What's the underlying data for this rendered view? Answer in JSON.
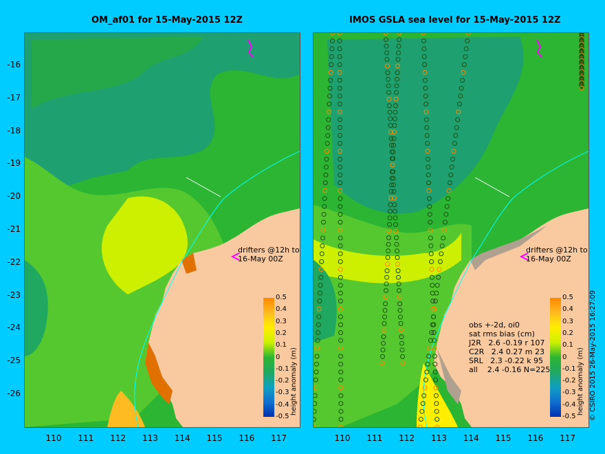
{
  "left_panel": {
    "title": "OM_af01 for 15-May-2015 12Z"
  },
  "right_panel": {
    "title": "IMOS GSLA sea level  for 15-May-2015 12Z"
  },
  "map_axes": {
    "lat_ticks": [
      "-16",
      "-17",
      "-18",
      "-19",
      "-20",
      "-21",
      "-22",
      "-23",
      "-24",
      "-25",
      "-26"
    ],
    "lon_ticks": [
      "110",
      "111",
      "112",
      "113",
      "114",
      "115",
      "116",
      "117"
    ],
    "lon_range": [
      109.1,
      118
    ],
    "lat_range": [
      -27,
      -15
    ]
  },
  "colorbar": {
    "ticks": [
      "0.5",
      "0.4",
      "0.3",
      "0.2",
      "0.1",
      "0",
      "-0.1",
      "-0.2",
      "-0.3",
      "-0.4",
      "-0.5"
    ],
    "label": "height anomaly (m)",
    "colors": [
      "#ff8800",
      "#ffbb22",
      "#ffee00",
      "#ccf000",
      "#2cb532",
      "#20a860",
      "#10a0c0",
      "#1070d0",
      "#0030b0"
    ]
  },
  "drifters_label": {
    "line1": "drifters @12h to",
    "line2": "16-May 00Z"
  },
  "obs_stats": {
    "lines": [
      "obs +-2d, oi0",
      "sat rms bias (cm)",
      "J2R   2.6 -0.19 r 107",
      "C2R   2.4 0.27 m 23",
      "SRL   2.3 -0.22 k 95",
      "all    2.4 -0.16 N=225"
    ]
  },
  "credit": "© CSIRO 2015  26-May-2015 16:27:09",
  "colors": {
    "background": "#00ccff",
    "land": "#f9c9a0",
    "ocean_base": "#2cb532",
    "drifter": "#ff00ff",
    "coast_track": "#00ffff"
  }
}
